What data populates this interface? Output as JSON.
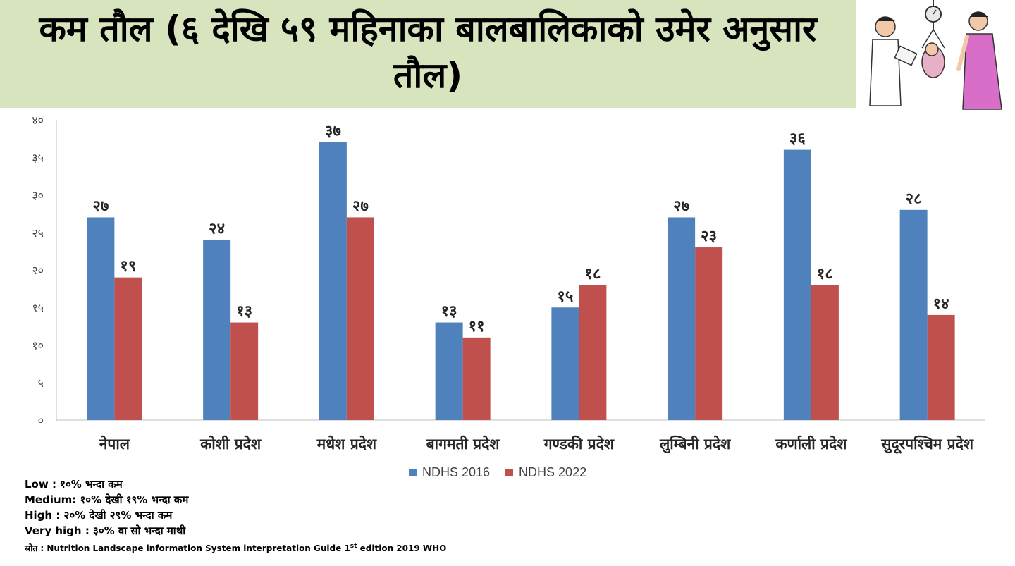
{
  "title": "कम तौल (६ देखि ५९ महिनाका बालबालिकाको उमेर अनुसार तौल)",
  "colors": {
    "ndhs2016": "#4f81bd",
    "ndhs2022": "#c0504d",
    "title_band": "#d7e4bd"
  },
  "chart_data": {
    "type": "bar",
    "categories": [
      "नेपाल",
      "कोशी प्रदेश",
      "मधेश प्रदेश",
      "बागमती प्रदेश",
      "गण्डकी प्रदेश",
      "लुम्बिनी प्रदेश",
      "कर्णाली प्रदेश",
      "सुदूरपश्चिम प्रदेश"
    ],
    "series": [
      {
        "name": "NDHS 2016",
        "values": [
          27,
          24,
          37,
          13,
          15,
          27,
          36,
          28
        ],
        "labels": [
          "२७",
          "२४",
          "३७",
          "१३",
          "१५",
          "२७",
          "३६",
          "२८"
        ]
      },
      {
        "name": "NDHS 2022",
        "values": [
          19,
          13,
          27,
          11,
          18,
          23,
          18,
          14
        ],
        "labels": [
          "१९",
          "१३",
          "२७",
          "११",
          "१८",
          "२३",
          "१८",
          "१४"
        ]
      }
    ],
    "ylim": [
      0,
      40
    ],
    "yticks": [
      0,
      5,
      10,
      15,
      20,
      25,
      30,
      35,
      40
    ],
    "ytick_labels": [
      "०",
      "५",
      "१०",
      "१५",
      "२०",
      "२५",
      "३०",
      "३५",
      "४०"
    ],
    "grid": false,
    "legend": "bottom"
  },
  "notes": {
    "low": "Low : १०% भन्दा कम",
    "medium": "Medium: १०% देखी १९% भन्दा कम",
    "high": "High : २०% देखी २९% भन्दा कम",
    "very_high": "Very high : ३०% वा सो भन्दा माथी",
    "source_label": "स्रोत :",
    "source_text": "Nutrition Landscape information System interpretation Guide 1",
    "source_sup": "st",
    "source_tail": " edition 2019 WHO"
  }
}
